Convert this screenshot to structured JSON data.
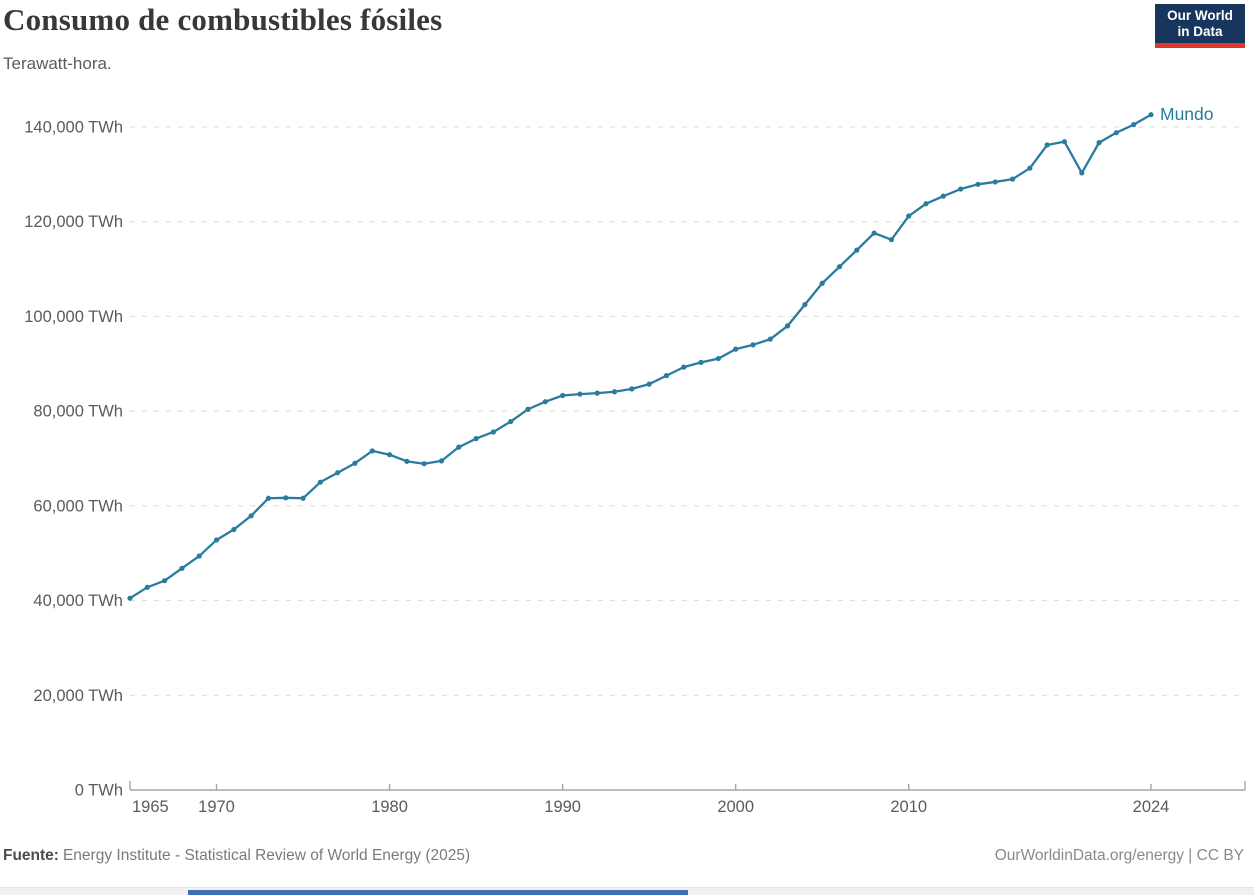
{
  "header": {
    "title": "Consumo de combustibles fósiles",
    "subtitle": "Terawatt-hora."
  },
  "logo": {
    "line1": "Our World",
    "line2": "in Data",
    "bg_color": "#18355e",
    "accent_color": "#dd3a2c"
  },
  "chart_data": {
    "type": "line",
    "title": "Consumo de combustibles fósiles",
    "unit": "TWh",
    "xlabel": "",
    "ylabel": "Terawatt-hora",
    "xlim": [
      1965,
      2024
    ],
    "ylim": [
      0,
      140000
    ],
    "grid": "horizontal-dashed",
    "legend_position": "end-of-line",
    "x_ticks": [
      1965,
      1970,
      1980,
      1990,
      2000,
      2010,
      2024
    ],
    "y_ticks": [
      0,
      20000,
      40000,
      60000,
      80000,
      100000,
      120000,
      140000
    ],
    "y_tick_suffix": " TWh",
    "series": [
      {
        "name": "Mundo",
        "color": "#2a7c9e",
        "x": [
          1965,
          1966,
          1967,
          1968,
          1969,
          1970,
          1971,
          1972,
          1973,
          1974,
          1975,
          1976,
          1977,
          1978,
          1979,
          1980,
          1981,
          1982,
          1983,
          1984,
          1985,
          1986,
          1987,
          1988,
          1989,
          1990,
          1991,
          1992,
          1993,
          1994,
          1995,
          1996,
          1997,
          1998,
          1999,
          2000,
          2001,
          2002,
          2003,
          2004,
          2005,
          2006,
          2007,
          2008,
          2009,
          2010,
          2011,
          2012,
          2013,
          2014,
          2015,
          2016,
          2017,
          2018,
          2019,
          2020,
          2021,
          2022,
          2023,
          2024
        ],
        "values": [
          40500,
          42800,
          44200,
          46800,
          49400,
          52800,
          55000,
          57900,
          61600,
          61700,
          61600,
          65000,
          67000,
          69000,
          71600,
          70800,
          69400,
          68900,
          69500,
          72400,
          74200,
          75600,
          77800,
          80400,
          82000,
          83300,
          83600,
          83800,
          84100,
          84700,
          85700,
          87500,
          89300,
          90300,
          91100,
          93100,
          94000,
          95200,
          98000,
          102500,
          107000,
          110500,
          114000,
          117600,
          116200,
          121200,
          123800,
          125400,
          126900,
          127900,
          128400,
          129000,
          131300,
          136200,
          136900,
          130300,
          136700,
          138800,
          140500,
          142600
        ]
      }
    ]
  },
  "footer": {
    "source_label": "Fuente:",
    "source_text": "Energy Institute - Statistical Review of World Energy (2025)",
    "credit": "OurWorldinData.org/energy | CC BY"
  },
  "colors": {
    "grid": "#dadada",
    "axis": "#a6a6a6",
    "tick_label": "#5b5b5b",
    "bottom_strip": "#3e6eb4"
  }
}
